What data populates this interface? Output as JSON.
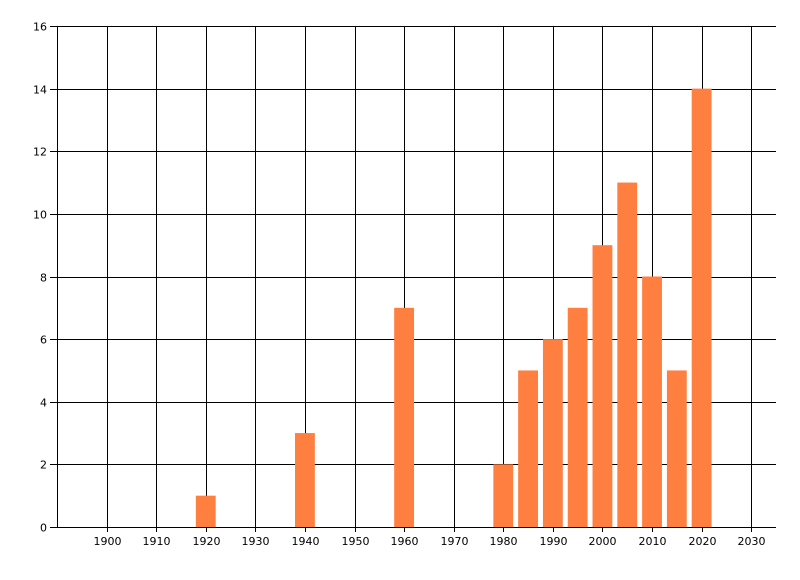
{
  "chart_data": {
    "type": "bar",
    "title": "",
    "xlabel": "",
    "ylabel": "",
    "xlim": [
      1890,
      2035
    ],
    "ylim": [
      0,
      16
    ],
    "grid": true,
    "bar_color": "#FF7F41",
    "x_ticks": [
      1900,
      1910,
      1920,
      1930,
      1940,
      1950,
      1960,
      1970,
      1980,
      1990,
      2000,
      2010,
      2020,
      2030
    ],
    "y_ticks": [
      0,
      2,
      4,
      6,
      8,
      10,
      12,
      14,
      16
    ],
    "x": [
      1920,
      1940,
      1960,
      1980,
      1985,
      1990,
      1995,
      2000,
      2005,
      2010,
      2015,
      2020
    ],
    "values": [
      1,
      3,
      7,
      2,
      5,
      6,
      7,
      9,
      11,
      8,
      5,
      14
    ],
    "bar_width_years": 4
  }
}
